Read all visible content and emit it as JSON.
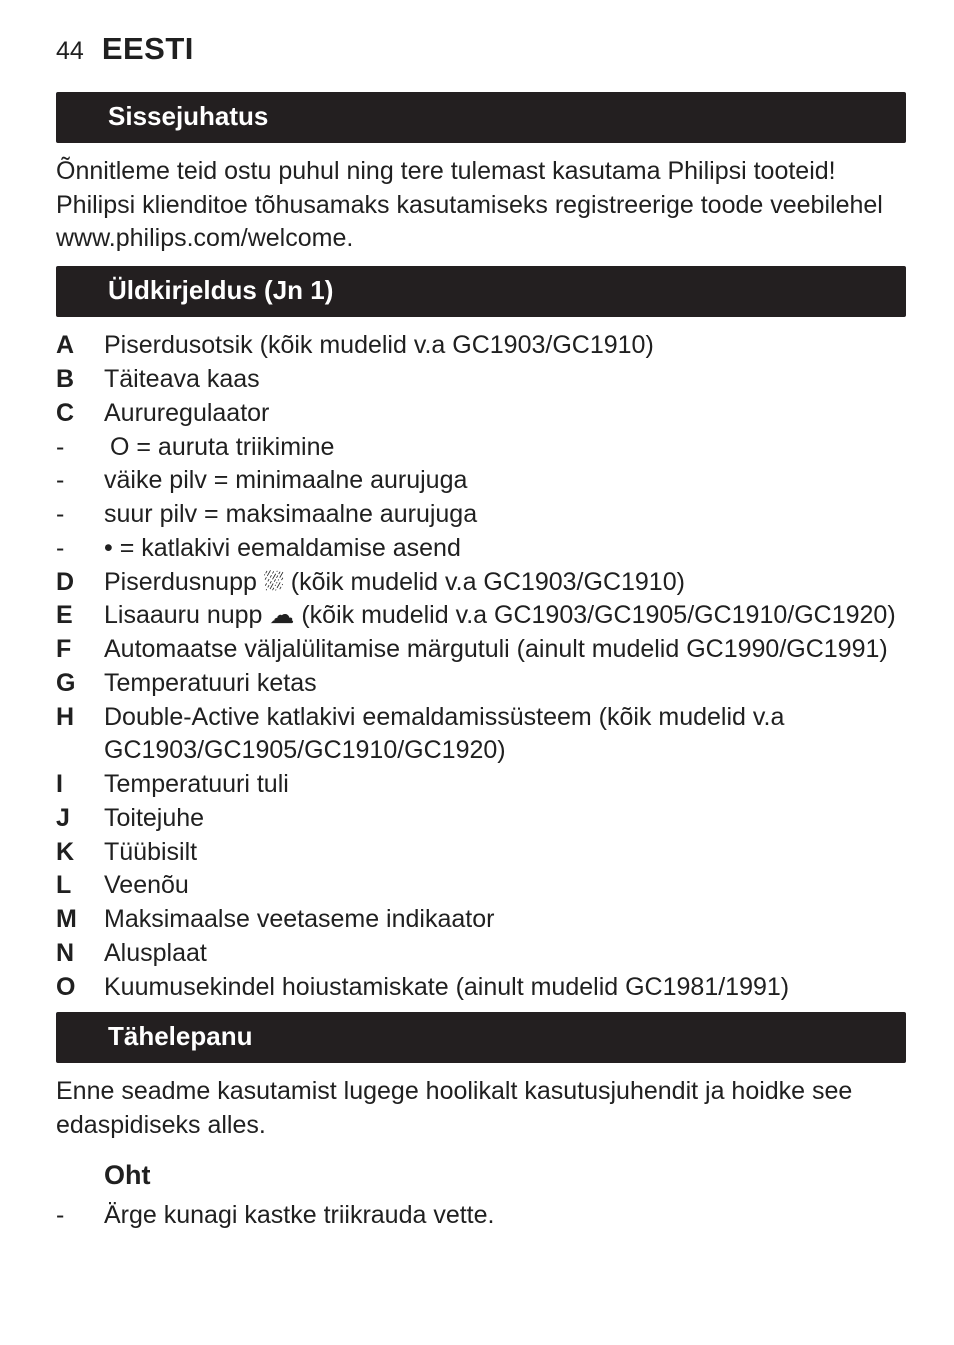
{
  "page": {
    "number": "44",
    "language": "EESTI"
  },
  "colors": {
    "section_bar_bg": "#231f20",
    "section_bar_fg": "#ffffff",
    "body_text": "#202020",
    "page_bg": "#ffffff"
  },
  "typography": {
    "body_fontsize_pt": 19,
    "heading_fontsize_pt": 20,
    "lang_fontsize_pt": 23,
    "body_line_height": 1.35,
    "heading_weight": 700,
    "key_weight": 700
  },
  "sections": {
    "intro": {
      "title": "Sissejuhatus",
      "body": "Õnnitleme teid ostu puhul ning tere tulemast kasutama Philipsi tooteid! Philipsi klienditoe tõhusamaks kasutamiseks registreerige toode veebilehel www.philips.com/welcome."
    },
    "overview": {
      "title": "Üldkirjeldus (Jn 1)",
      "items": [
        {
          "key": "A",
          "text": "Piserdusotsik (kõik mudelid v.a GC1903/GC1910)"
        },
        {
          "key": "B",
          "text": "Täiteava kaas"
        },
        {
          "key": "C",
          "text": "Aururegulaator"
        },
        {
          "key": "-",
          "text": " O = auruta triikimine",
          "dash": true,
          "indent": true
        },
        {
          "key": "-",
          "text": "väike pilv = minimaalne aurujuga",
          "dash": true
        },
        {
          "key": "-",
          "text": "suur pilv = maksimaalne aurujuga",
          "dash": true
        },
        {
          "key": "-",
          "text": "• = katlakivi eemaldamise asend",
          "dash": true
        },
        {
          "key": "D",
          "text": "Piserdusnupp ⛆ (kõik mudelid v.a GC1903/GC1910)"
        },
        {
          "key": "E",
          "text": "Lisaauru nupp ☁ (kõik mudelid v.a GC1903/GC1905/GC1910/GC1920)"
        },
        {
          "key": "F",
          "text": "Automaatse väljalülitamise märgutuli (ainult mudelid GC1990/GC1991)"
        },
        {
          "key": "G",
          "text": "Temperatuuri ketas"
        },
        {
          "key": "H",
          "text": "Double-Active katlakivi eemaldamissüsteem (kõik mudelid v.a GC1903/GC1905/GC1910/GC1920)"
        },
        {
          "key": "I",
          "text": "Temperatuuri tuli"
        },
        {
          "key": "J",
          "text": "Toitejuhe"
        },
        {
          "key": "K",
          "text": "Tüübisilt"
        },
        {
          "key": "L",
          "text": "Veenõu"
        },
        {
          "key": "M",
          "text": "Maksimaalse veetaseme indikaator"
        },
        {
          "key": "N",
          "text": "Alusplaat"
        },
        {
          "key": "O",
          "text": "Kuumusekindel hoiustamiskate (ainult mudelid GC1981/1991)"
        }
      ]
    },
    "attention": {
      "title": "Tähelepanu",
      "body": "Enne seadme kasutamist lugege hoolikalt kasutusjuhendit ja hoidke see edaspidiseks alles.",
      "sub": {
        "title": "Oht",
        "items": [
          {
            "key": "-",
            "text": "Ärge kunagi kastke triikrauda vette.",
            "dash": true
          }
        ]
      }
    }
  }
}
